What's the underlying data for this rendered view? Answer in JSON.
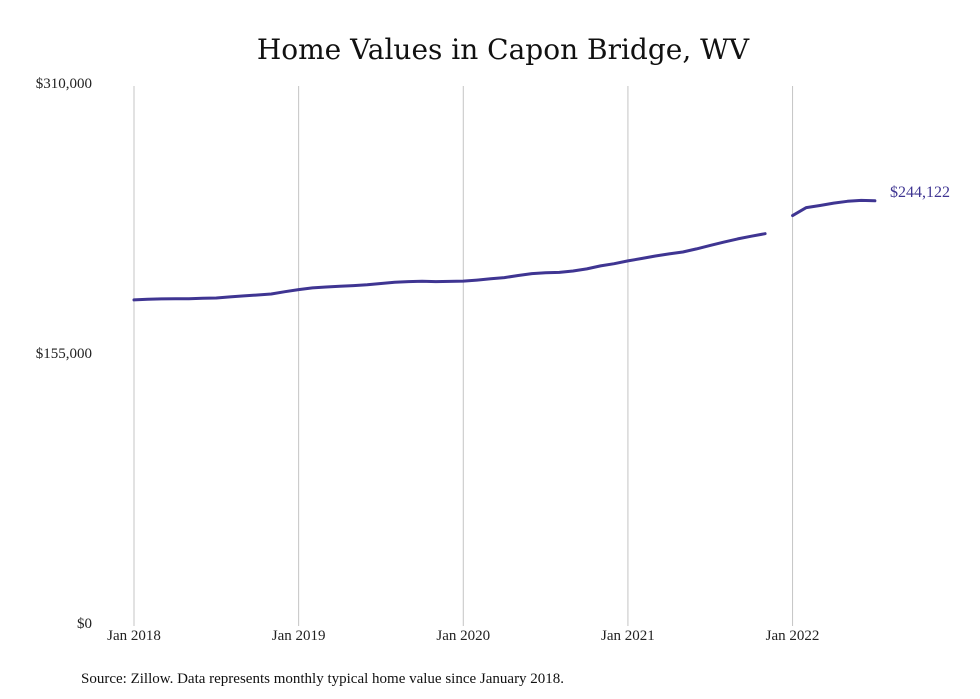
{
  "chart_data": {
    "type": "line",
    "title": "Home Values in Capon Bridge, WV",
    "xlabel": "",
    "ylabel": "",
    "ylim": [
      0,
      310000
    ],
    "y_ticks": [
      {
        "value": 0,
        "label": "$0"
      },
      {
        "value": 155000,
        "label": "$155,000"
      },
      {
        "value": 310000,
        "label": "$310,000"
      }
    ],
    "x_ticks": [
      {
        "value": 0,
        "label": "Jan 2018"
      },
      {
        "value": 12,
        "label": "Jan 2019"
      },
      {
        "value": 24,
        "label": "Jan 2020"
      },
      {
        "value": 36,
        "label": "Jan 2021"
      },
      {
        "value": 48,
        "label": "Jan 2022"
      }
    ],
    "grid": {
      "vertical": true,
      "horizontal": false
    },
    "color": "#3f3592",
    "series_segments": [
      {
        "x": [
          0,
          1,
          2,
          3,
          4,
          5,
          6,
          7,
          8,
          9,
          10,
          11,
          12,
          13,
          14,
          15,
          16,
          17,
          18,
          19,
          20,
          21,
          22,
          23,
          24,
          25,
          26,
          27,
          28,
          29,
          30,
          31,
          32,
          33,
          34,
          35,
          36,
          37,
          38,
          39,
          40,
          41,
          42,
          43,
          44,
          45,
          46
        ],
        "values": [
          187200,
          187600,
          187800,
          187900,
          187900,
          188100,
          188300,
          188900,
          189500,
          190000,
          190600,
          191900,
          193100,
          194100,
          194600,
          195000,
          195400,
          195900,
          196600,
          197300,
          197700,
          197900,
          197700,
          197800,
          198000,
          198600,
          199300,
          200000,
          201200,
          202300,
          202800,
          203000,
          203800,
          205000,
          206700,
          208000,
          209600,
          211000,
          212400,
          213600,
          214700,
          216500,
          218500,
          220400,
          222200,
          223800,
          225200
        ]
      },
      {
        "x": [
          48,
          49,
          50,
          51,
          52,
          53,
          54
        ],
        "values": [
          235600,
          240200,
          241400,
          242800,
          243800,
          244300,
          244122
        ]
      }
    ],
    "end_label": "$244,122"
  },
  "source_note": "Source: Zillow. Data represents monthly typical home value since January 2018."
}
